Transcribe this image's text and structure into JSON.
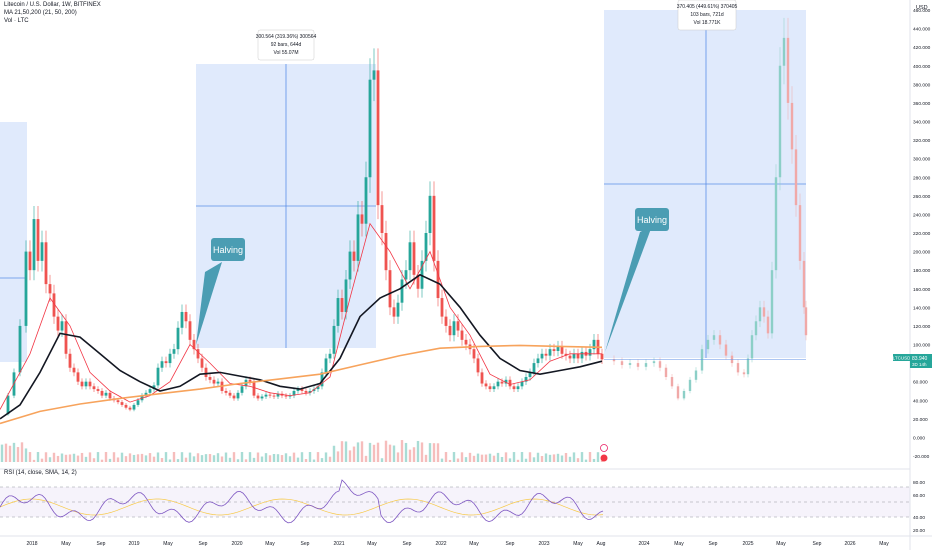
{
  "header": {
    "symbol_line": "Litecoin / U.S. Dollar, 1W, BITFINEX",
    "ma_line": "MA 21,50,200 (21, 50, 200)",
    "vol_line": "Vol · LTC",
    "currency": "USD"
  },
  "price_axis": {
    "labels": [
      "460.000",
      "440.000",
      "420.000",
      "400.000",
      "380.000",
      "360.000",
      "340.000",
      "320.000",
      "300.000",
      "280.000",
      "260.000",
      "240.000",
      "220.000",
      "200.000",
      "180.000",
      "160.000",
      "140.000",
      "120.000",
      "100.000",
      "80.000",
      "60.000",
      "40.000",
      "20.000",
      "0.000",
      "-20.000"
    ],
    "current_price": "83.940",
    "current_sub": "3D 14h",
    "symbol_tag": "LTCUSD"
  },
  "time_axis": {
    "labels": [
      "2018",
      "May",
      "Sep",
      "2019",
      "May",
      "Sep",
      "2020",
      "May",
      "Sep",
      "2021",
      "May",
      "Sep",
      "2022",
      "May",
      "Sep",
      "2023",
      "May",
      "Aug",
      "2024",
      "May",
      "Sep",
      "2025",
      "May",
      "Sep",
      "2026",
      "May"
    ]
  },
  "rsi": {
    "header": "RSI (14, close, SMA, 14, 2)",
    "labels": [
      "80.00",
      "60.00",
      "40.00",
      "20.00"
    ]
  },
  "annotations": {
    "halving_1": "Halving",
    "halving_2": "Halving",
    "measure_1": {
      "line1": "300.564 (319.36%) 300564",
      "line2": "92 bars, 644d",
      "line3": "Vol 55.07M"
    },
    "measure_2": {
      "line1": "370.405 (449.61%) 370405",
      "line2": "103 bars, 721d",
      "line3": "Vol 18.771K"
    }
  },
  "colors": {
    "up": "#26a69a",
    "down": "#ef5350",
    "ma21": "#f23645",
    "ma50": "#131722",
    "ma200": "#f7a35c",
    "measure_fill": "#dbe6fb",
    "measure_line": "#5b8ee6",
    "label_blue": "#4b9db3",
    "rsi": "#7e57c2"
  }
}
